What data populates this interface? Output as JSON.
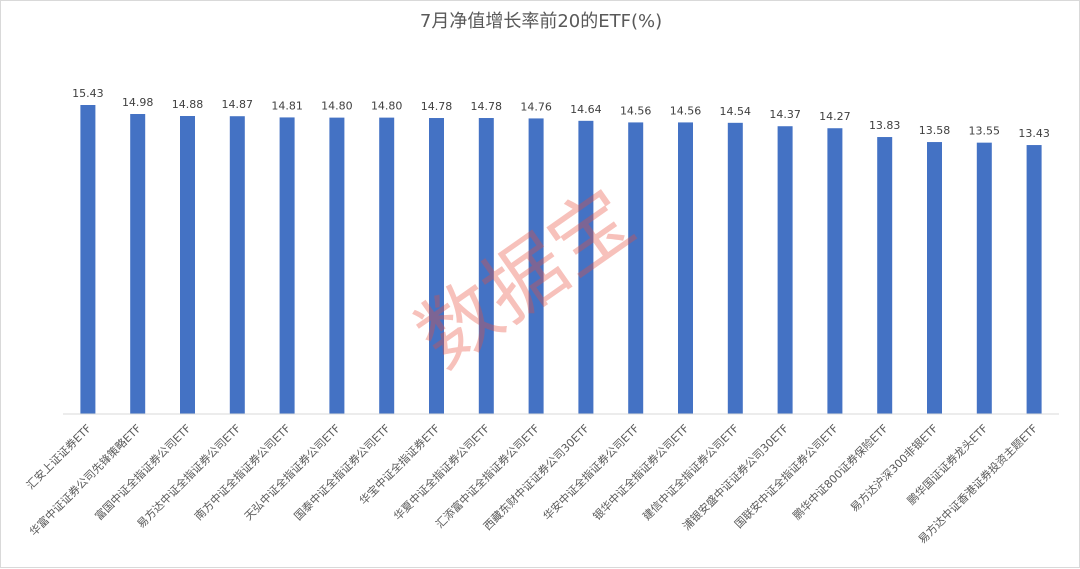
{
  "chart_data": {
    "type": "bar",
    "title": "7月净值增长率前20的ETF(%)",
    "xlabel": "",
    "ylabel": "",
    "ylim": [
      0,
      15.43
    ],
    "grid": false,
    "legend": "none",
    "bar_color": "#4472c4",
    "categories": [
      "汇安上证证券ETF",
      "华富中证证券公司先锋策略ETF",
      "富国中证全指证券公司ETF",
      "易方达中证全指证券公司ETF",
      "南方中证全指证券公司ETF",
      "天弘中证全指证券公司ETF",
      "国泰中证全指证券公司ETF",
      "华宝中证全指证券ETF",
      "华夏中证全指证券公司ETF",
      "汇添富中证全指证券公司ETF",
      "西藏东财中证证券公司30ETF",
      "华安中证全指证券公司ETF",
      "银华中证全指证券公司ETF",
      "建信中证全指证券公司ETF",
      "浦银安盛中证证券公司30ETF",
      "国联安中证全指证券公司ETF",
      "鹏华中证800证券保险ETF",
      "易方达沪深300非银ETF",
      "鹏华国证证券龙头ETF",
      "易方达中证香港证券投资主题ETF"
    ],
    "values": [
      15.43,
      14.98,
      14.88,
      14.87,
      14.81,
      14.8,
      14.8,
      14.78,
      14.78,
      14.76,
      14.64,
      14.56,
      14.56,
      14.54,
      14.37,
      14.27,
      13.83,
      13.58,
      13.55,
      13.43
    ],
    "value_labels": [
      "15.43",
      "14.98",
      "14.88",
      "14.87",
      "14.81",
      "14.80",
      "14.80",
      "14.78",
      "14.78",
      "14.76",
      "14.64",
      "14.56",
      "14.56",
      "14.54",
      "14.37",
      "14.27",
      "13.83",
      "13.58",
      "13.55",
      "13.43"
    ]
  },
  "watermark": {
    "text": "数据宝",
    "color": "#e84c3d"
  }
}
